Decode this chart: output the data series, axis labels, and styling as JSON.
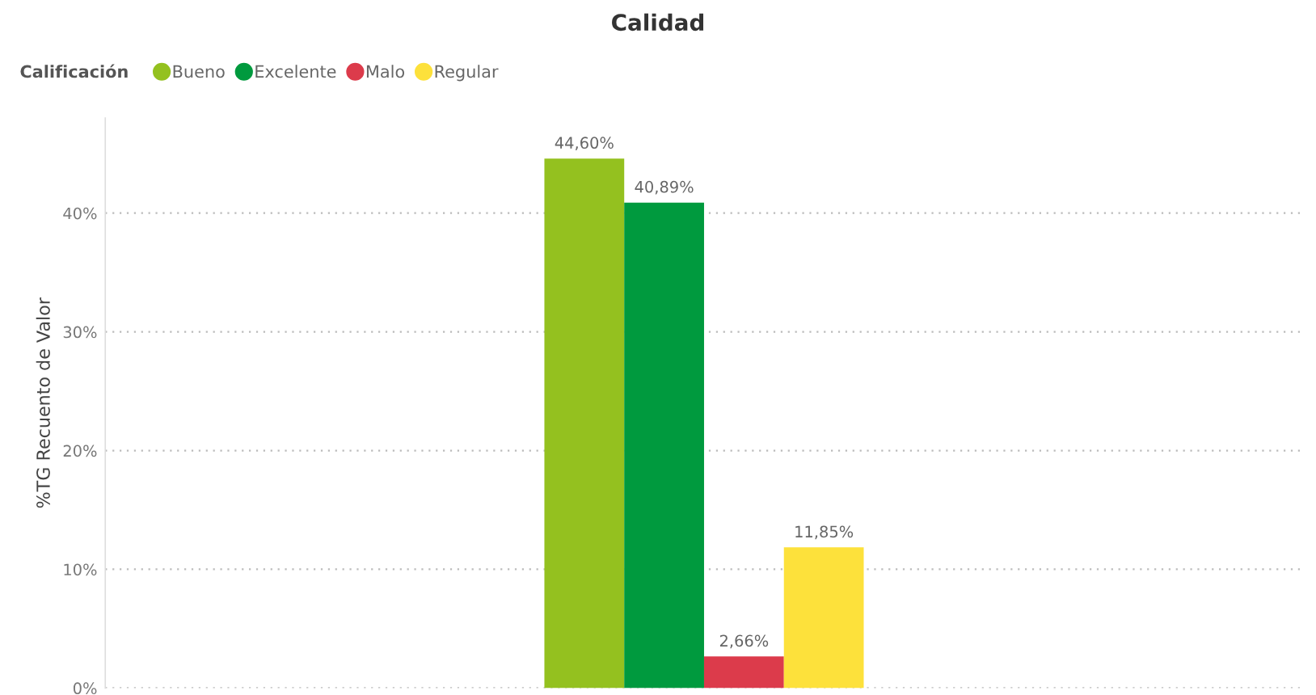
{
  "chart_data": {
    "type": "bar",
    "title": "Calidad",
    "ylabel": "%TG Recuento de Valor",
    "legend_title": "Calificación",
    "legend": "top left",
    "categories": [
      null
    ],
    "series": [
      {
        "name": "Bueno",
        "color": "#94c11f",
        "values": [
          44.6
        ],
        "value_labels": [
          "44,60%"
        ]
      },
      {
        "name": "Excelente",
        "color": "#009a3e",
        "values": [
          40.89
        ],
        "value_labels": [
          "40,89%"
        ]
      },
      {
        "name": "Malo",
        "color": "#dc3b4b",
        "values": [
          2.66
        ],
        "value_labels": [
          "2,66%"
        ]
      },
      {
        "name": "Regular",
        "color": "#fde13b",
        "values": [
          11.85
        ],
        "value_labels": [
          "11,85%"
        ]
      }
    ],
    "ylim": [
      0,
      48
    ],
    "yticks": [
      {
        "value": 0,
        "label": "0%"
      },
      {
        "value": 10,
        "label": "10%"
      },
      {
        "value": 20,
        "label": "20%"
      },
      {
        "value": 30,
        "label": "30%"
      },
      {
        "value": 40,
        "label": "40%"
      }
    ],
    "grid": "y"
  }
}
